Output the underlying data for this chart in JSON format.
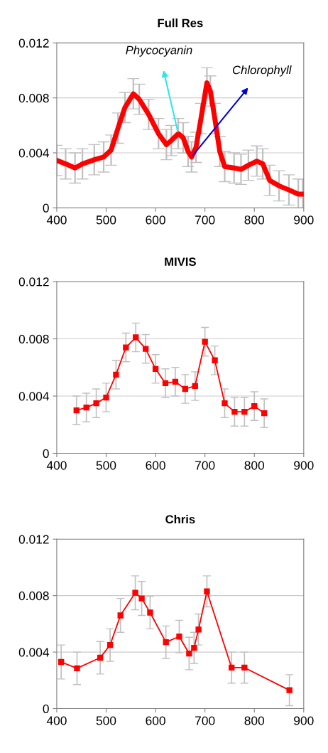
{
  "chart_data": [
    {
      "type": "line",
      "title": "Full Res",
      "xlim": [
        400,
        900
      ],
      "xticks": [
        400,
        500,
        600,
        700,
        800,
        900
      ],
      "ylim": [
        0,
        0.012
      ],
      "yticks": [
        0,
        0.004,
        0.008,
        0.012
      ],
      "grid": "y",
      "marker": "none",
      "line_style": "solid",
      "annotations": [
        {
          "text": "Phycocyanin",
          "x": 646,
          "y": 0.0054
        },
        {
          "text": "Chlorophyll",
          "x": 673,
          "y": 0.0037
        }
      ],
      "series": [
        {
          "color": "#ff0000",
          "x": [
            400,
            418,
            437,
            452,
            476,
            495,
            510,
            524,
            538,
            555,
            567,
            586,
            606,
            622,
            632,
            646,
            656,
            666,
            673,
            682,
            692,
            704,
            711,
            720,
            730,
            740,
            759,
            773,
            788,
            805,
            817,
            831,
            850,
            870,
            889,
            898
          ],
          "values": [
            0.00345,
            0.0032,
            0.0029,
            0.0032,
            0.0035,
            0.0037,
            0.0042,
            0.0058,
            0.0073,
            0.0083,
            0.0079,
            0.0068,
            0.0054,
            0.0046,
            0.0049,
            0.0054,
            0.0051,
            0.0041,
            0.0037,
            0.0044,
            0.0065,
            0.0091,
            0.0085,
            0.0065,
            0.0041,
            0.003,
            0.0029,
            0.0028,
            0.0031,
            0.0034,
            0.0032,
            0.002,
            0.0016,
            0.0013,
            0.001,
            0.001
          ],
          "errors": [
            0.0011,
            0.0011,
            0.0011,
            0.0011,
            0.0011,
            0.0011,
            0.0011,
            0.0011,
            0.0011,
            0.0011,
            0.0011,
            0.0011,
            0.0011,
            0.0011,
            0.0011,
            0.0011,
            0.0011,
            0.0011,
            0.0011,
            0.0011,
            0.0011,
            0.0011,
            0.0011,
            0.0011,
            0.0011,
            0.0011,
            0.0011,
            0.0011,
            0.0011,
            0.0011,
            0.0011,
            0.0011,
            0.0011,
            0.0011,
            0.0011,
            0.0011
          ]
        }
      ]
    },
    {
      "type": "line",
      "title": "MIVIS",
      "xlim": [
        400,
        900
      ],
      "xticks": [
        400,
        500,
        600,
        700,
        800,
        900
      ],
      "ylim": [
        0,
        0.012
      ],
      "yticks": [
        0,
        0.004,
        0.008,
        0.012
      ],
      "grid": "y",
      "marker": "square",
      "line_style": "solid",
      "series": [
        {
          "color": "#ff0000",
          "x": [
            440,
            460,
            480,
            500,
            520,
            540,
            560,
            580,
            600,
            620,
            640,
            660,
            680,
            700,
            720,
            740,
            760,
            780,
            800,
            820
          ],
          "values": [
            0.003,
            0.0032,
            0.0035,
            0.0039,
            0.0055,
            0.0074,
            0.0081,
            0.0073,
            0.0059,
            0.0049,
            0.005,
            0.0045,
            0.0047,
            0.0078,
            0.0065,
            0.0035,
            0.0029,
            0.0029,
            0.0033,
            0.0028
          ],
          "errors": [
            0.001,
            0.001,
            0.001,
            0.001,
            0.001,
            0.001,
            0.001,
            0.001,
            0.001,
            0.001,
            0.001,
            0.001,
            0.001,
            0.001,
            0.001,
            0.001,
            0.001,
            0.001,
            0.001,
            0.001
          ]
        }
      ]
    },
    {
      "type": "line",
      "title": "Chris",
      "xlim": [
        400,
        900
      ],
      "xticks": [
        400,
        500,
        600,
        700,
        800,
        900
      ],
      "ylim": [
        0,
        0.012
      ],
      "yticks": [
        0,
        0.004,
        0.008,
        0.012
      ],
      "grid": "y",
      "marker": "square",
      "line_style": "solid",
      "series": [
        {
          "color": "#ff0000",
          "x": [
            409,
            441,
            488,
            508,
            529,
            559,
            572,
            589,
            621,
            648,
            668,
            678,
            687,
            704,
            754,
            780,
            871
          ],
          "values": [
            0.0033,
            0.00285,
            0.0036,
            0.0045,
            0.0066,
            0.0082,
            0.0078,
            0.0068,
            0.0047,
            0.0051,
            0.0039,
            0.0043,
            0.0056,
            0.0083,
            0.0029,
            0.0029,
            0.0013
          ],
          "errors": [
            0.0012,
            0.00115,
            0.00115,
            0.00115,
            0.0012,
            0.0012,
            0.0012,
            0.00115,
            0.00115,
            0.00115,
            0.00115,
            0.0011,
            0.0011,
            0.0011,
            0.0011,
            0.0011,
            0.0011
          ]
        }
      ]
    }
  ]
}
